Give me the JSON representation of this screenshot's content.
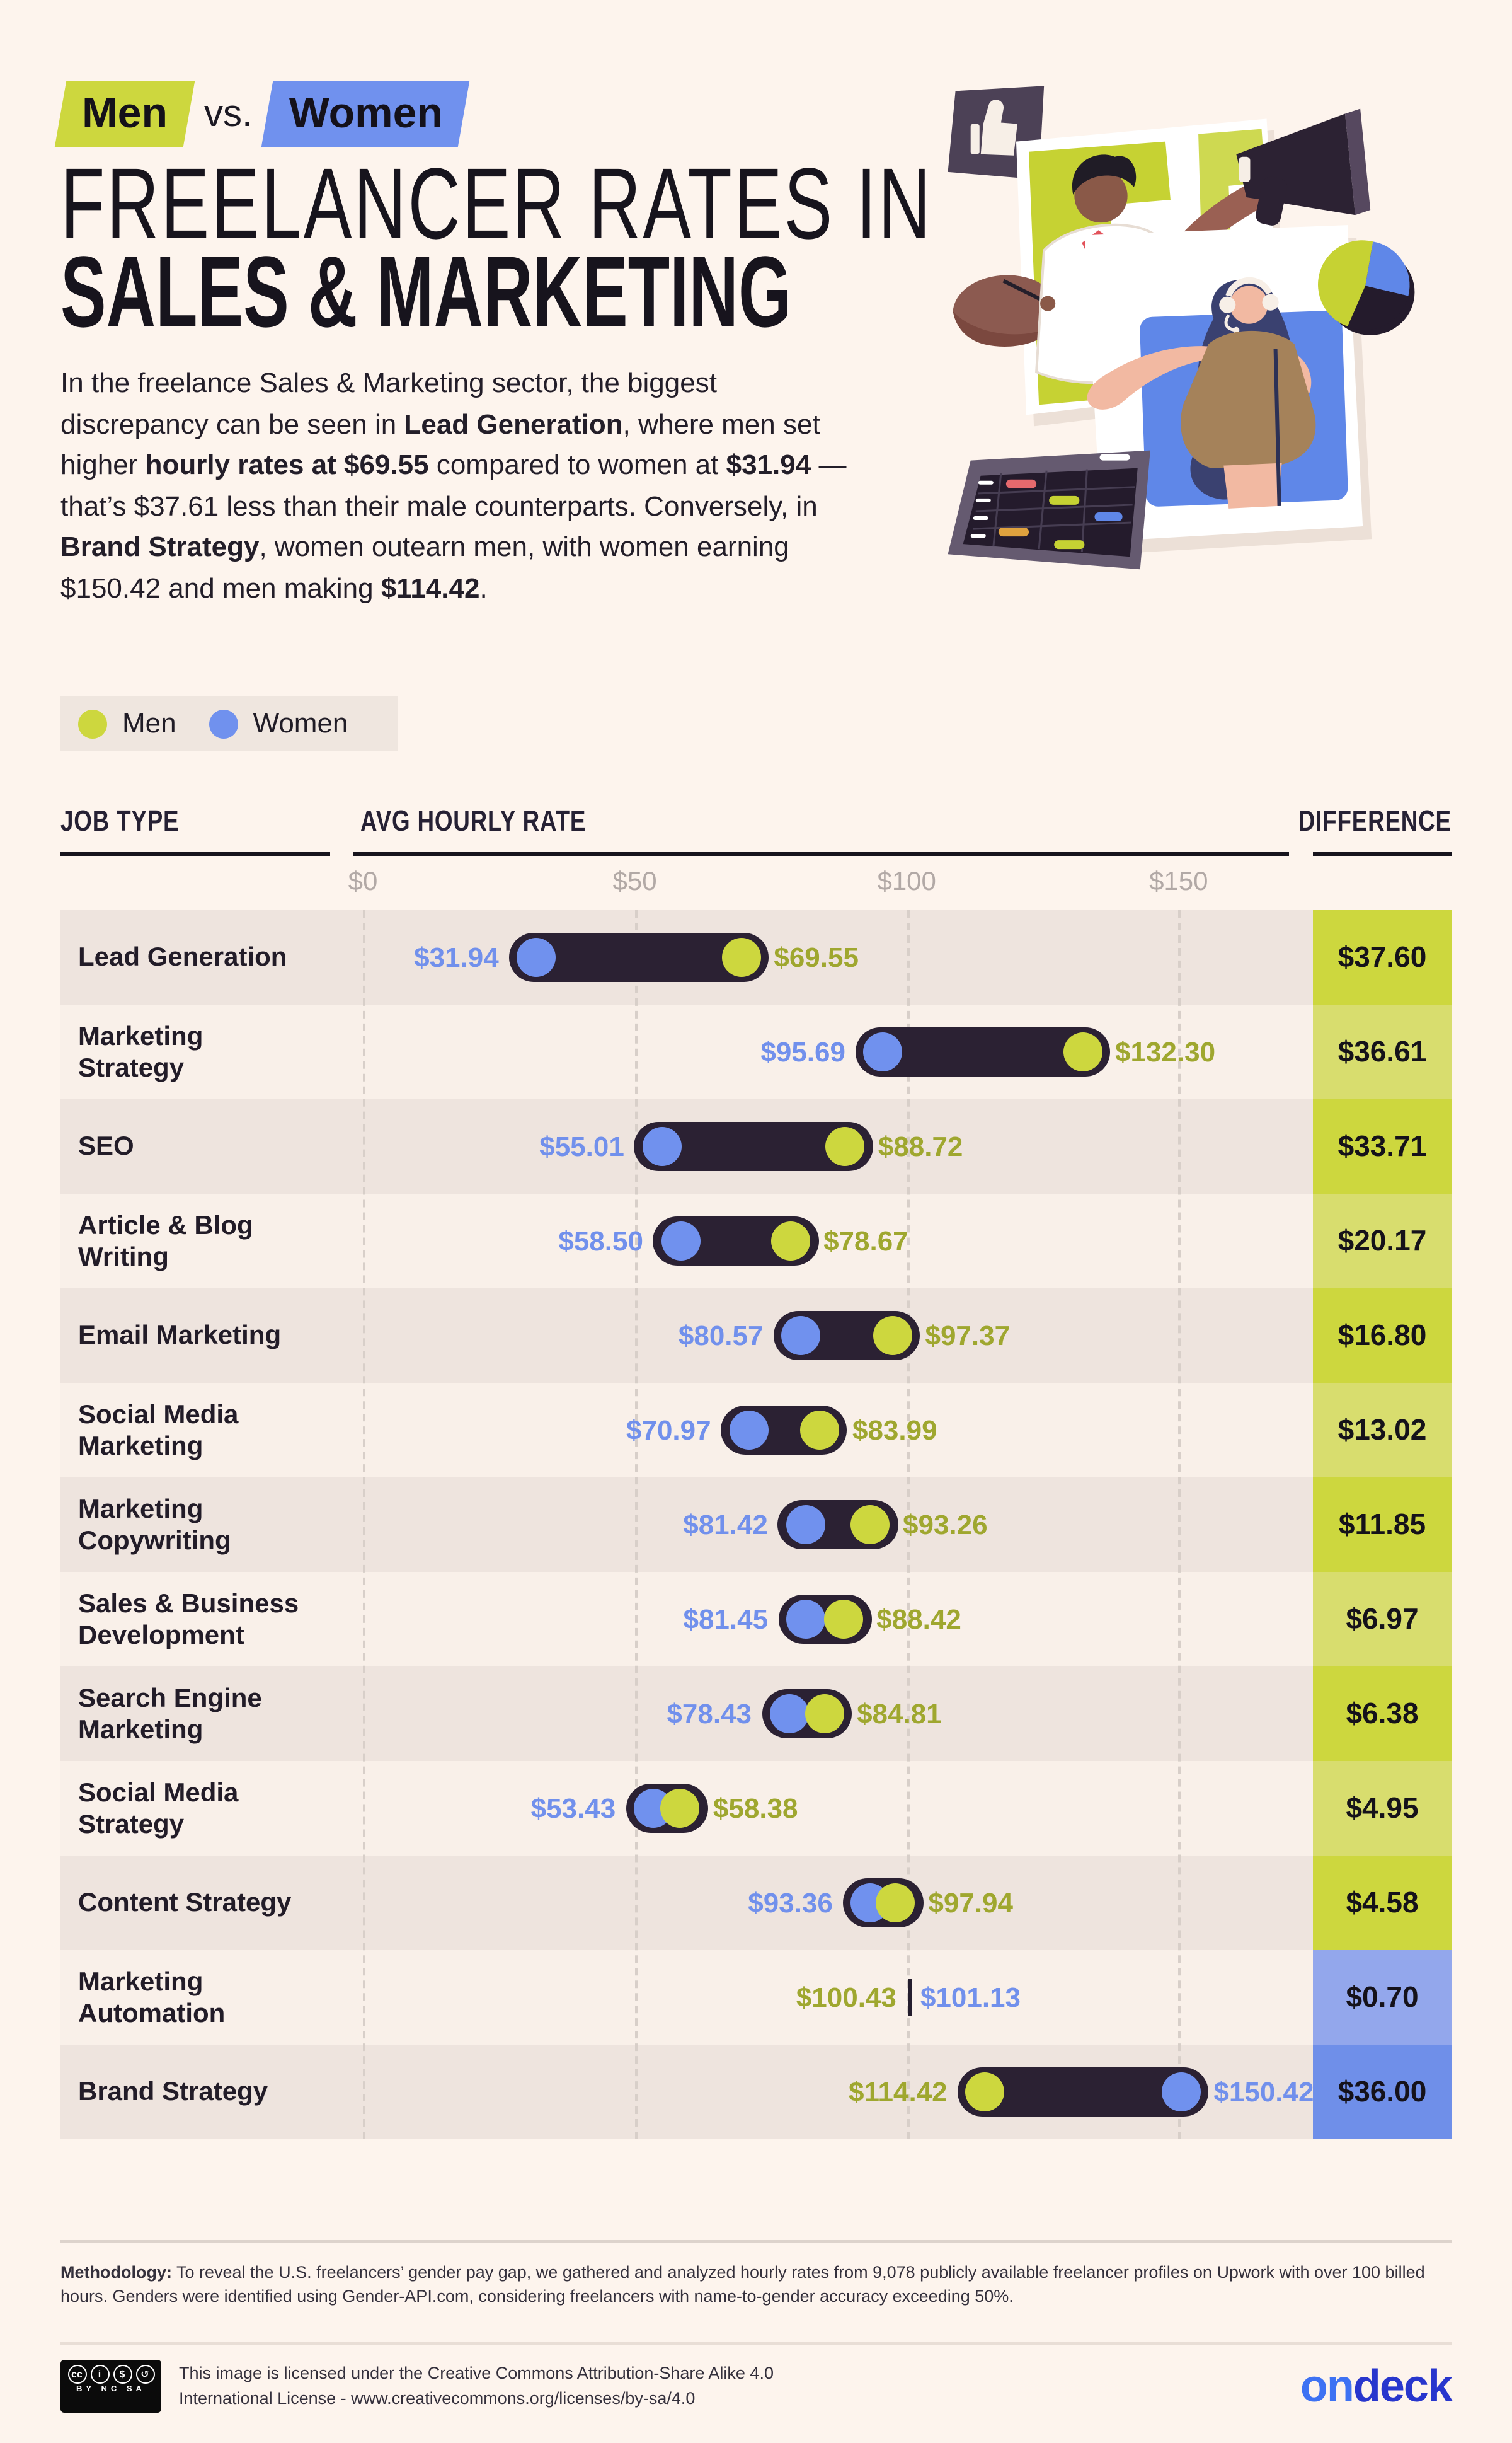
{
  "header": {
    "men_chip": "Men",
    "vs_label": "vs.",
    "women_chip": "Women",
    "title_line1": "FREELANCER RATES IN",
    "title_line2": "SALES & MARKETING",
    "intro_segments": [
      {
        "text": "In the freelance Sales & Marketing sector, the biggest discrepancy can be seen in ",
        "bold": false
      },
      {
        "text": "Lead Generation",
        "bold": true
      },
      {
        "text": ", where men set higher ",
        "bold": false
      },
      {
        "text": "hourly rates at $69.55",
        "bold": true
      },
      {
        "text": " compared to women at ",
        "bold": false
      },
      {
        "text": "$31.94",
        "bold": true
      },
      {
        "text": " — that’s $37.61 less than their male counterparts. Conversely, in ",
        "bold": false
      },
      {
        "text": "Brand Strategy",
        "bold": true
      },
      {
        "text": ", women outearn men, with women earning $150.42 and men making ",
        "bold": false
      },
      {
        "text": "$114.42",
        "bold": true
      },
      {
        "text": ".",
        "bold": false
      }
    ]
  },
  "legend": {
    "men_label": "Men",
    "women_label": "Women"
  },
  "table": {
    "job_type_header": "JOB TYPE",
    "rate_header": "AVG HOURLY RATE",
    "difference_header": "DIFFERENCE"
  },
  "chart_data": {
    "type": "dumbbell",
    "title": "Men vs. Women — Freelancer Rates in Sales & Marketing",
    "xlabel": "AVG HOURLY RATE",
    "axis_ticks": [
      {
        "label": "$0",
        "value": 0
      },
      {
        "label": "$50",
        "value": 50
      },
      {
        "label": "$100",
        "value": 100
      },
      {
        "label": "$150",
        "value": 150
      }
    ],
    "axis_range": [
      0,
      174.7
    ],
    "legend_position": "top-left",
    "categories": [
      "Lead Generation",
      "Marketing Strategy",
      "SEO",
      "Article & Blog Writing",
      "Email Marketing",
      "Social Media Marketing",
      "Marketing Copywriting",
      "Sales & Business Development",
      "Search Engine Marketing",
      "Social Media Strategy",
      "Content Strategy",
      "Marketing Automation",
      "Brand Strategy"
    ],
    "series": [
      {
        "name": "Men",
        "values": [
          69.55,
          132.3,
          88.72,
          78.67,
          97.37,
          83.99,
          93.26,
          88.42,
          84.81,
          58.38,
          97.94,
          100.43,
          114.42
        ]
      },
      {
        "name": "Women",
        "values": [
          31.94,
          95.69,
          55.01,
          58.5,
          80.57,
          70.97,
          81.42,
          81.45,
          78.43,
          53.43,
          93.36,
          101.13,
          150.42
        ]
      }
    ],
    "rows": [
      {
        "job": [
          "Lead Generation"
        ],
        "left_gender": "women",
        "left_value": 31.94,
        "left_label": "$31.94",
        "right_gender": "men",
        "right_value": 69.55,
        "right_label": "$69.55",
        "marker": "pill",
        "diff_label": "$37.60",
        "diff_bg": "#cdd73e"
      },
      {
        "job": [
          "Marketing",
          "Strategy"
        ],
        "left_gender": "women",
        "left_value": 95.69,
        "left_label": "$95.69",
        "right_gender": "men",
        "right_value": 132.3,
        "right_label": "$132.30",
        "marker": "pill",
        "diff_label": "$36.61",
        "diff_bg": "#d8dd6e"
      },
      {
        "job": [
          "SEO"
        ],
        "left_gender": "women",
        "left_value": 55.01,
        "left_label": "$55.01",
        "right_gender": "men",
        "right_value": 88.72,
        "right_label": "$88.72",
        "marker": "pill",
        "diff_label": "$33.71",
        "diff_bg": "#cdd73e"
      },
      {
        "job": [
          "Article & Blog",
          "Writing"
        ],
        "left_gender": "women",
        "left_value": 58.5,
        "left_label": "$58.50",
        "right_gender": "men",
        "right_value": 78.67,
        "right_label": "$78.67",
        "marker": "pill",
        "diff_label": "$20.17",
        "diff_bg": "#d8dd6e"
      },
      {
        "job": [
          "Email Marketing"
        ],
        "left_gender": "women",
        "left_value": 80.57,
        "left_label": "$80.57",
        "right_gender": "men",
        "right_value": 97.37,
        "right_label": "$97.37",
        "marker": "pill",
        "diff_label": "$16.80",
        "diff_bg": "#cdd73e"
      },
      {
        "job": [
          "Social Media",
          "Marketing"
        ],
        "left_gender": "women",
        "left_value": 70.97,
        "left_label": "$70.97",
        "right_gender": "men",
        "right_value": 83.99,
        "right_label": "$83.99",
        "marker": "pill",
        "diff_label": "$13.02",
        "diff_bg": "#d8dd6e"
      },
      {
        "job": [
          "Marketing",
          "Copywriting"
        ],
        "left_gender": "women",
        "left_value": 81.42,
        "left_label": "$81.42",
        "right_gender": "men",
        "right_value": 93.26,
        "right_label": "$93.26",
        "marker": "pill",
        "diff_label": "$11.85",
        "diff_bg": "#cdd73e"
      },
      {
        "job": [
          "Sales & Business",
          "Development"
        ],
        "left_gender": "women",
        "left_value": 81.45,
        "left_label": "$81.45",
        "right_gender": "men",
        "right_value": 88.42,
        "right_label": "$88.42",
        "marker": "pill",
        "diff_label": "$6.97",
        "diff_bg": "#d8dd6e"
      },
      {
        "job": [
          "Search Engine",
          "Marketing"
        ],
        "left_gender": "women",
        "left_value": 78.43,
        "left_label": "$78.43",
        "right_gender": "men",
        "right_value": 84.81,
        "right_label": "$84.81",
        "marker": "pill",
        "diff_label": "$6.38",
        "diff_bg": "#cdd73e"
      },
      {
        "job": [
          "Social Media",
          "Strategy"
        ],
        "left_gender": "women",
        "left_value": 53.43,
        "left_label": "$53.43",
        "right_gender": "men",
        "right_value": 58.38,
        "right_label": "$58.38",
        "marker": "pill",
        "diff_label": "$4.95",
        "diff_bg": "#d8dd6e"
      },
      {
        "job": [
          "Content Strategy"
        ],
        "left_gender": "women",
        "left_value": 93.36,
        "left_label": "$93.36",
        "right_gender": "men",
        "right_value": 97.94,
        "right_label": "$97.94",
        "marker": "pill",
        "diff_label": "$4.58",
        "diff_bg": "#cdd73e"
      },
      {
        "job": [
          "Marketing",
          "Automation"
        ],
        "left_gender": "men",
        "left_value": 100.43,
        "left_label": "$100.43",
        "right_gender": "women",
        "right_value": 101.13,
        "right_label": "$101.13",
        "marker": "line",
        "diff_label": "$0.70",
        "diff_bg": "#93a7ec"
      },
      {
        "job": [
          "Brand Strategy"
        ],
        "left_gender": "men",
        "left_value": 114.42,
        "left_label": "$114.42",
        "right_gender": "women",
        "right_value": 150.42,
        "right_label": "$150.42",
        "marker": "pill",
        "diff_label": "$36.00",
        "diff_bg": "#6f8fe9"
      }
    ]
  },
  "methodology": {
    "label": "Methodology:",
    "text": " To reveal the U.S. freelancers’ gender pay gap, we gathered and analyzed hourly rates from 9,078 publicly available freelancer profiles on Upwork with over 100 billed hours. Genders were identified using Gender-API.com, considering freelancers with name-to-gender accuracy exceeding 50%."
  },
  "footer": {
    "cc_icons": [
      "cc",
      "i",
      "$",
      "↺"
    ],
    "cc_sub": "BY NC SA",
    "license_line1": "This image is licensed under the Creative Commons Attribution-Share Alike 4.0",
    "license_line2": "International License - www.creativecommons.org/licenses/by-sa/4.0",
    "logo_part1": "on",
    "logo_part2": "deck"
  },
  "colors": {
    "men_green": "#cdd73e",
    "women_blue": "#7091ee",
    "bar_dark": "#2b2133",
    "men_text": "#9fa72f",
    "women_text": "#7190ec"
  }
}
